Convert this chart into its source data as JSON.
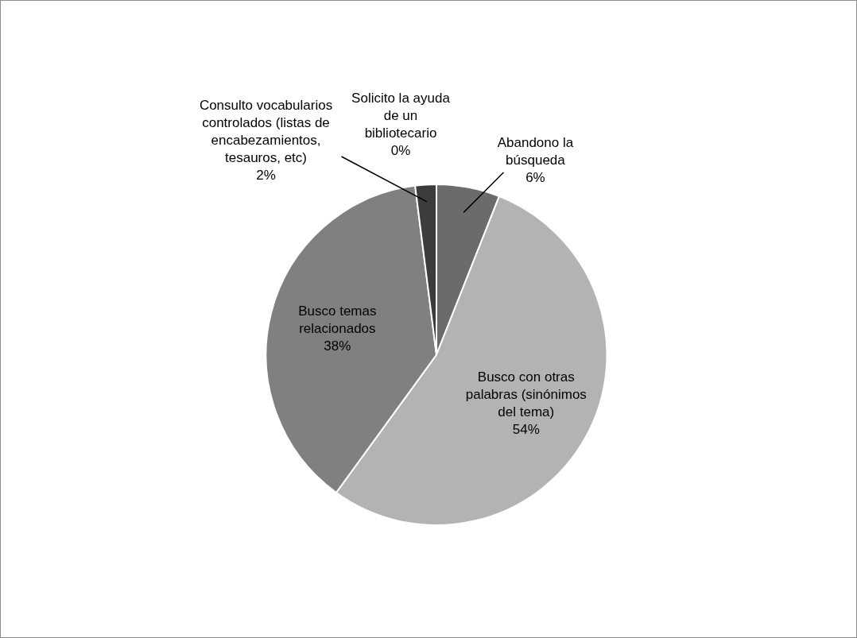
{
  "chart_data": {
    "type": "pie",
    "categories": [
      "Abandono la búsqueda",
      "Busco con otras palabras (sinónimos del tema)",
      "Busco temas relacionados",
      "Consulto vocabularios controlados (listas de encabezamientos, tesauros, etc)",
      "Solicito la ayuda de un bibliotecario"
    ],
    "values": [
      6,
      54,
      38,
      2,
      0
    ],
    "value_labels": [
      "6%",
      "54%",
      "38%",
      "2%",
      "0%"
    ],
    "colors": [
      "#6b6b6b",
      "#b3b3b3",
      "#808080",
      "#3c3c3c",
      "#8a8a8a"
    ],
    "legend": false
  }
}
